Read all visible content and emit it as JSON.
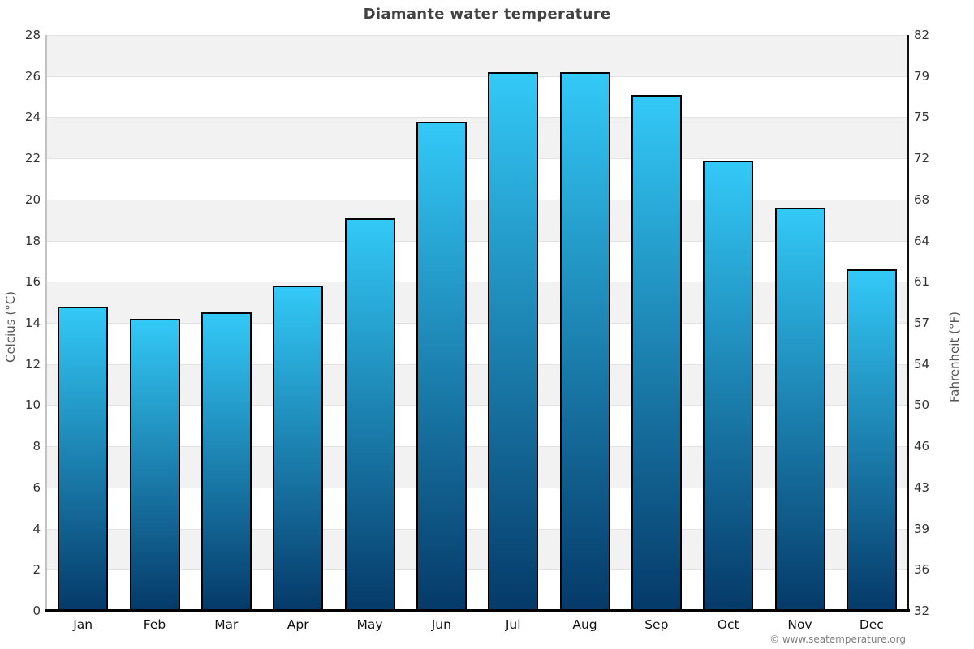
{
  "chart_data": {
    "type": "bar",
    "title": "Diamante water temperature",
    "categories": [
      "Jan",
      "Feb",
      "Mar",
      "Apr",
      "May",
      "Jun",
      "Jul",
      "Aug",
      "Sep",
      "Oct",
      "Nov",
      "Dec"
    ],
    "values": [
      14.8,
      14.2,
      14.5,
      15.8,
      19.1,
      23.8,
      26.2,
      26.2,
      25.1,
      21.9,
      19.6,
      16.6
    ],
    "value_unit": "°C",
    "ylabel_left": "Celcius (°C)",
    "ylabel_right": "Fahrenheit (°F)",
    "ylim": [
      0,
      28
    ],
    "yticks_celsius": [
      28,
      26,
      24,
      22,
      20,
      18,
      16,
      14,
      12,
      10,
      8,
      6,
      4,
      2,
      0
    ],
    "yticks_fahrenheit": [
      82,
      79,
      75,
      72,
      68,
      64,
      61,
      57,
      54,
      50,
      46,
      43,
      39,
      36,
      32
    ],
    "grid": "horizontal alternating bands, shaded band at top",
    "legend": "none",
    "colors": {
      "bar_gradient_top": "#33c9f7",
      "bar_gradient_bottom": "#053a69",
      "bar_border": "#000000",
      "band_shaded": "#f2f2f2",
      "band_plain": "#ffffff",
      "gridline": "#e3e3e3",
      "title_text": "#424242",
      "tick_text": "#333333",
      "axis_title_text": "#555555",
      "copyright_text": "#808080"
    }
  },
  "footer": {
    "copyright": "© www.seatemperature.org"
  }
}
